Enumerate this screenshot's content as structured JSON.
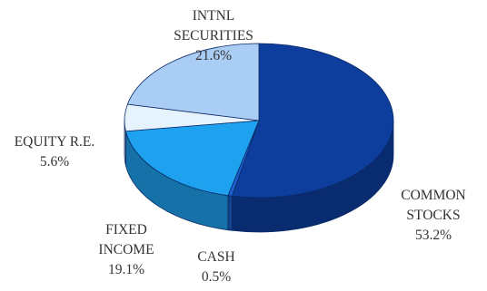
{
  "chart_data": {
    "type": "pie",
    "title": "",
    "slices": [
      {
        "label_lines": [
          "COMMON",
          "STOCKS"
        ],
        "value_text": "53.2%",
        "value": 53.2,
        "color": "#0d3e9e"
      },
      {
        "label_lines": [
          "CASH"
        ],
        "value_text": "0.5%",
        "value": 0.5,
        "color": "#1a5fcf"
      },
      {
        "label_lines": [
          "FIXED",
          "INCOME"
        ],
        "value_text": "19.1%",
        "value": 19.1,
        "color": "#1ea2ef"
      },
      {
        "label_lines": [
          "EQUITY R.E."
        ],
        "value_text": "5.6%",
        "value": 5.6,
        "color": "#e6f3fc"
      },
      {
        "label_lines": [
          "INTNL",
          "SECURITIES"
        ],
        "value_text": "21.6%",
        "value": 21.6,
        "color": "#a9cdf5"
      }
    ]
  }
}
